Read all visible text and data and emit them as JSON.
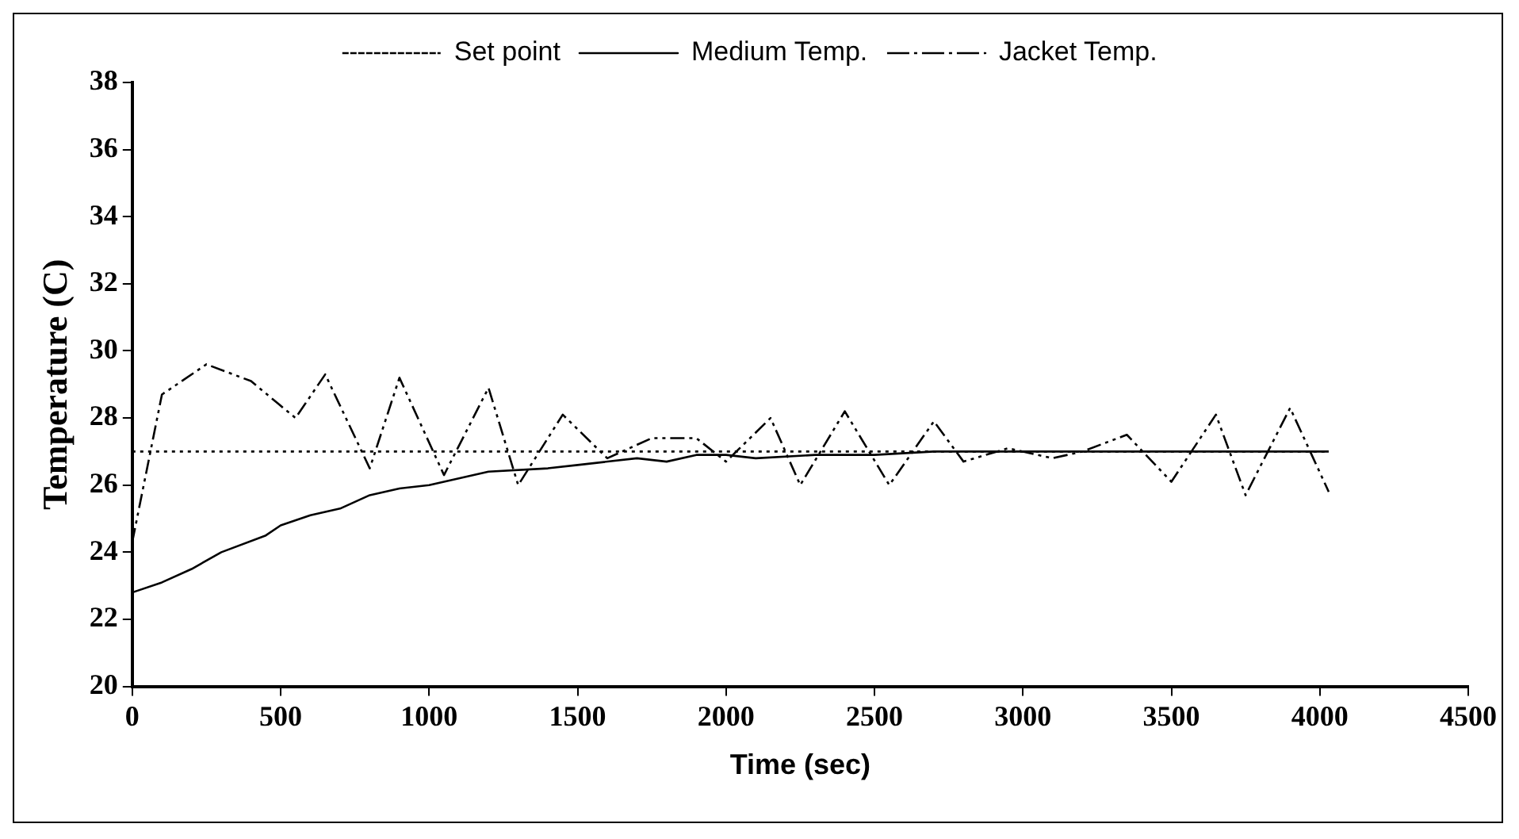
{
  "chart_data": {
    "type": "line",
    "xlabel": "Time (sec)",
    "ylabel": "Temperature (C)",
    "xlim": [
      0,
      4500
    ],
    "xticks": [
      0,
      500,
      1000,
      1500,
      2000,
      2500,
      3000,
      3500,
      4000,
      4500
    ],
    "ylim": [
      20,
      38
    ],
    "yticks": [
      20,
      22,
      24,
      26,
      28,
      30,
      32,
      34,
      36,
      38
    ],
    "grid": false,
    "legend": "top",
    "marker": "none",
    "series": [
      {
        "name": "Set point",
        "color": "#000000",
        "line_style": "dotted",
        "x": [
          0,
          4030
        ],
        "values": [
          27,
          27
        ]
      },
      {
        "name": "Medium Temp.",
        "color": "#000000",
        "line_style": "solid",
        "x": [
          0,
          100,
          200,
          300,
          450,
          500,
          600,
          700,
          800,
          900,
          1000,
          1100,
          1200,
          1400,
          1500,
          1700,
          1800,
          1900,
          2000,
          2100,
          2300,
          2500,
          2700,
          2900,
          3100,
          3300,
          3500,
          3700,
          3900,
          4030
        ],
        "values": [
          22.8,
          23.1,
          23.5,
          24,
          24.5,
          24.8,
          25.1,
          25.3,
          25.7,
          25.9,
          26,
          26.2,
          26.4,
          26.5,
          26.6,
          26.8,
          26.7,
          26.9,
          26.9,
          26.8,
          26.9,
          26.9,
          27,
          27,
          27,
          27,
          27,
          27,
          27,
          27
        ]
      },
      {
        "name": "Jacket Temp.",
        "color": "#000000",
        "line_style": "dashdot",
        "x": [
          0,
          100,
          250,
          400,
          550,
          650,
          800,
          900,
          1050,
          1200,
          1300,
          1450,
          1600,
          1750,
          1900,
          2000,
          2150,
          2250,
          2400,
          2550,
          2700,
          2800,
          2950,
          3100,
          3200,
          3350,
          3500,
          3650,
          3750,
          3900,
          4030
        ],
        "values": [
          24.3,
          28.7,
          29.6,
          29.1,
          28,
          29.3,
          26.5,
          29.2,
          26.3,
          28.9,
          26,
          28.1,
          26.8,
          27.4,
          27.4,
          26.7,
          28,
          26,
          28.2,
          26,
          27.9,
          26.7,
          27.1,
          26.8,
          27,
          27.5,
          26.1,
          28.1,
          25.7,
          28.3,
          25.8
        ]
      }
    ]
  }
}
